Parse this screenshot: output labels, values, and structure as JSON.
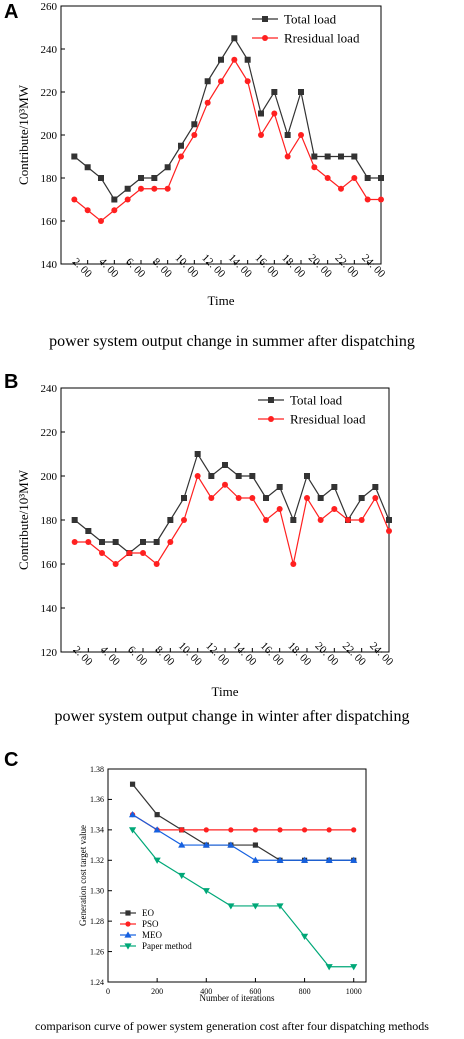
{
  "panels": [
    {
      "letter": "A",
      "caption": "power system output change in summer after dispatching",
      "chart_data": {
        "type": "line",
        "x_tick_labels": [
          "2: 00",
          "4: 00",
          "6: 00",
          "8: 00",
          "10: 00",
          "12: 00",
          "14: 00",
          "16: 00",
          "18: 00",
          "20: 00",
          "22: 00",
          "24: 00"
        ],
        "xlabel": "Time",
        "ylabel": "Contribute/10³MW",
        "ylim": [
          140,
          260
        ],
        "yticks": [
          140,
          160,
          180,
          200,
          220,
          240,
          260
        ],
        "x": [
          1,
          2,
          3,
          4,
          5,
          6,
          7,
          8,
          9,
          10,
          11,
          12,
          13,
          14,
          15,
          16,
          17,
          18,
          19,
          20,
          21,
          22,
          23,
          24
        ],
        "xlim": [
          0,
          24
        ],
        "legend_position": "top-right",
        "series": [
          {
            "name": "Total load",
            "color": "#333333",
            "marker": "square",
            "values": [
              190,
              185,
              180,
              170,
              175,
              180,
              180,
              185,
              195,
              205,
              225,
              235,
              245,
              235,
              210,
              220,
              200,
              220,
              190,
              190,
              190,
              190,
              180,
              180
            ]
          },
          {
            "name": "Rresidual load",
            "color": "#ff2020",
            "marker": "circle",
            "values": [
              170,
              165,
              160,
              165,
              170,
              175,
              175,
              175,
              190,
              200,
              215,
              225,
              235,
              225,
              200,
              210,
              190,
              200,
              185,
              180,
              175,
              180,
              170,
              170
            ]
          }
        ]
      }
    },
    {
      "letter": "B",
      "caption": "power system output change in winter after dispatching",
      "chart_data": {
        "type": "line",
        "x_tick_labels": [
          "2: 00",
          "4: 00",
          "6: 00",
          "8: 00",
          "10: 00",
          "12: 00",
          "14: 00",
          "16: 00",
          "18: 00",
          "20: 00",
          "22: 00",
          "24: 00"
        ],
        "xlabel": "Time",
        "ylabel": "Contribute/10³MW",
        "ylim": [
          120,
          240
        ],
        "yticks": [
          120,
          140,
          160,
          180,
          200,
          220,
          240
        ],
        "x": [
          1,
          2,
          3,
          4,
          5,
          6,
          7,
          8,
          9,
          10,
          11,
          12,
          13,
          14,
          15,
          16,
          17,
          18,
          19,
          20,
          21,
          22,
          23,
          24
        ],
        "xlim": [
          0,
          24
        ],
        "legend_position": "top-right",
        "series": [
          {
            "name": "Total load",
            "color": "#333333",
            "marker": "square",
            "values": [
              180,
              175,
              170,
              170,
              165,
              170,
              170,
              180,
              190,
              210,
              200,
              205,
              200,
              200,
              190,
              195,
              180,
              200,
              190,
              195,
              180,
              190,
              195,
              180
            ]
          },
          {
            "name": "Rresidual load",
            "color": "#ff2020",
            "marker": "circle",
            "values": [
              170,
              170,
              165,
              160,
              165,
              165,
              160,
              170,
              180,
              200,
              190,
              196,
              190,
              190,
              180,
              185,
              160,
              190,
              180,
              185,
              180,
              180,
              190,
              175
            ]
          }
        ]
      }
    },
    {
      "letter": "C",
      "caption": "comparison curve of power system generation cost after four dispatching methods",
      "chart_data": {
        "type": "line",
        "xlabel": "Number of iterations",
        "ylabel": "Generation cost target value",
        "xlim": [
          0,
          1050
        ],
        "xticks": [
          0,
          200,
          400,
          600,
          800,
          1000
        ],
        "ylim": [
          1.24,
          1.38
        ],
        "yticks": [
          1.24,
          1.26,
          1.28,
          1.3,
          1.32,
          1.34,
          1.36,
          1.38
        ],
        "x": [
          100,
          200,
          300,
          400,
          500,
          600,
          700,
          800,
          900,
          1000
        ],
        "legend_position": "bottom-left",
        "series": [
          {
            "name": "EO",
            "color": "#333333",
            "marker": "square",
            "values": [
              1.37,
              1.35,
              1.34,
              1.33,
              1.33,
              1.33,
              1.32,
              1.32,
              1.32,
              1.32
            ]
          },
          {
            "name": "PSO",
            "color": "#ff2020",
            "marker": "circle",
            "values": [
              1.35,
              1.34,
              1.34,
              1.34,
              1.34,
              1.34,
              1.34,
              1.34,
              1.34,
              1.34
            ]
          },
          {
            "name": "MEO",
            "color": "#1560e0",
            "marker": "triangle-up",
            "values": [
              1.35,
              1.34,
              1.33,
              1.33,
              1.33,
              1.32,
              1.32,
              1.32,
              1.32,
              1.32
            ]
          },
          {
            "name": "Paper method",
            "color": "#00a878",
            "marker": "triangle-down",
            "values": [
              1.34,
              1.32,
              1.31,
              1.3,
              1.29,
              1.29,
              1.29,
              1.27,
              1.25,
              1.25
            ]
          }
        ]
      }
    }
  ]
}
